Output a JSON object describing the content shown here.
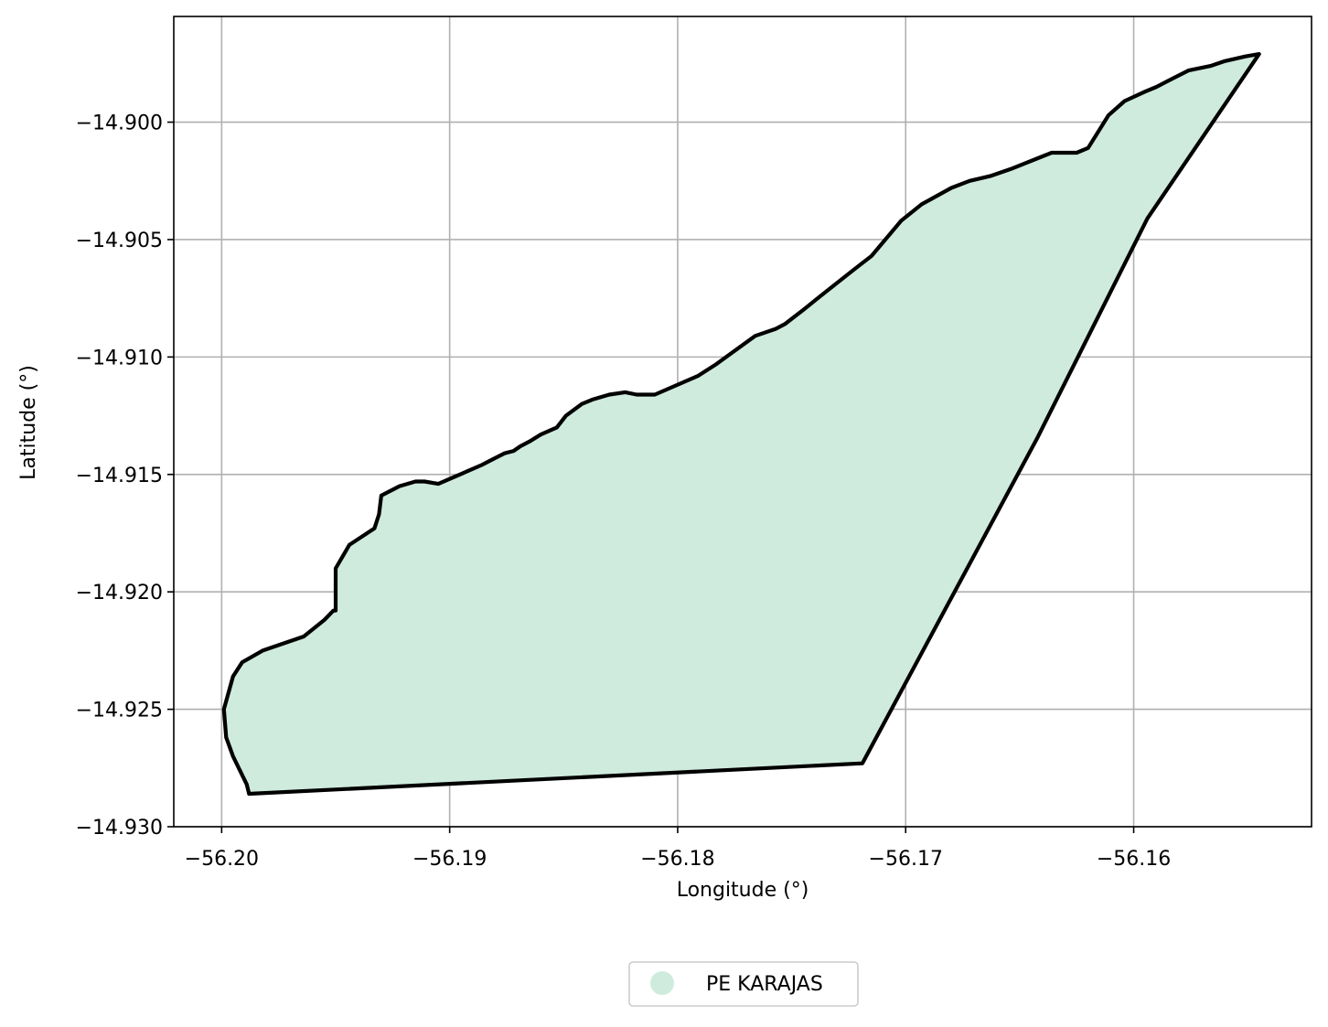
{
  "chart_data": {
    "type": "map",
    "xlabel": "Longitude (°)",
    "ylabel": "Latitude (°)",
    "xlim": [
      -56.2021,
      -56.1522
    ],
    "ylim": [
      -14.93,
      -14.8955
    ],
    "xticks": [
      -56.2,
      -56.19,
      -56.18,
      -56.17,
      -56.16
    ],
    "xtick_labels": [
      "−56.20",
      "−56.19",
      "−56.18",
      "−56.17",
      "−56.16"
    ],
    "yticks": [
      -14.9,
      -14.905,
      -14.91,
      -14.915,
      -14.92,
      -14.925,
      -14.93
    ],
    "ytick_labels": [
      "−14.900",
      "−14.905",
      "−14.910",
      "−14.915",
      "−14.920",
      "−14.925",
      "−14.930"
    ],
    "grid": true,
    "legend_position": "bottom-center, below plot",
    "legend": [
      {
        "label": "PE KARAJAS",
        "color": "#cfebdd"
      }
    ],
    "polygon": {
      "name": "PE KARAJAS",
      "fill": "#cfebdd",
      "stroke": "#000000",
      "coordinates": [
        [
          -56.1545,
          -14.8971
        ],
        [
          -56.1551,
          -14.8972
        ],
        [
          -56.156,
          -14.8974
        ],
        [
          -56.1566,
          -14.8976
        ],
        [
          -56.1576,
          -14.8978
        ],
        [
          -56.1584,
          -14.8982
        ],
        [
          -56.159,
          -14.8985
        ],
        [
          -56.1595,
          -14.8987
        ],
        [
          -56.1604,
          -14.8991
        ],
        [
          -56.1611,
          -14.8997
        ],
        [
          -56.162,
          -14.9011
        ],
        [
          -56.1625,
          -14.9013
        ],
        [
          -56.1636,
          -14.9013
        ],
        [
          -56.1654,
          -14.902
        ],
        [
          -56.1663,
          -14.9023
        ],
        [
          -56.1672,
          -14.9025
        ],
        [
          -56.168,
          -14.9028
        ],
        [
          -56.1693,
          -14.9035
        ],
        [
          -56.1702,
          -14.9042
        ],
        [
          -56.1715,
          -14.9057
        ],
        [
          -56.1723,
          -14.9063
        ],
        [
          -56.1736,
          -14.9073
        ],
        [
          -56.1745,
          -14.908
        ],
        [
          -56.1749,
          -14.9083
        ],
        [
          -56.1753,
          -14.9086
        ],
        [
          -56.1757,
          -14.9088
        ],
        [
          -56.1766,
          -14.9091
        ],
        [
          -56.1783,
          -14.9103
        ],
        [
          -56.1791,
          -14.9108
        ],
        [
          -56.181,
          -14.9116
        ],
        [
          -56.1818,
          -14.9116
        ],
        [
          -56.1823,
          -14.9115
        ],
        [
          -56.183,
          -14.9116
        ],
        [
          -56.1837,
          -14.9118
        ],
        [
          -56.1842,
          -14.912
        ],
        [
          -56.1849,
          -14.9125
        ],
        [
          -56.1853,
          -14.913
        ],
        [
          -56.186,
          -14.9133
        ],
        [
          -56.1865,
          -14.9136
        ],
        [
          -56.1869,
          -14.9138
        ],
        [
          -56.1872,
          -14.914
        ],
        [
          -56.1876,
          -14.9141
        ],
        [
          -56.1882,
          -14.9144
        ],
        [
          -56.1886,
          -14.9146
        ],
        [
          -56.1905,
          -14.9154
        ],
        [
          -56.1911,
          -14.9153
        ],
        [
          -56.1915,
          -14.9153
        ],
        [
          -56.1922,
          -14.9155
        ],
        [
          -56.193,
          -14.9159
        ],
        [
          -56.1931,
          -14.9167
        ],
        [
          -56.1933,
          -14.9173
        ],
        [
          -56.1944,
          -14.918
        ],
        [
          -56.195,
          -14.919
        ],
        [
          -56.195,
          -14.9208
        ],
        [
          -56.1951,
          -14.9208
        ],
        [
          -56.1955,
          -14.9212
        ],
        [
          -56.1964,
          -14.9219
        ],
        [
          -56.1982,
          -14.9225
        ],
        [
          -56.1991,
          -14.923
        ],
        [
          -56.1995,
          -14.9236
        ],
        [
          -56.1999,
          -14.925
        ],
        [
          -56.1998,
          -14.9262
        ],
        [
          -56.1995,
          -14.927
        ],
        [
          -56.1989,
          -14.9282
        ],
        [
          -56.1988,
          -14.9286
        ],
        [
          -56.1719,
          -14.9273
        ],
        [
          -56.1642,
          -14.9134
        ],
        [
          -56.1594,
          -14.9041
        ],
        [
          -56.1545,
          -14.8971
        ]
      ]
    }
  }
}
